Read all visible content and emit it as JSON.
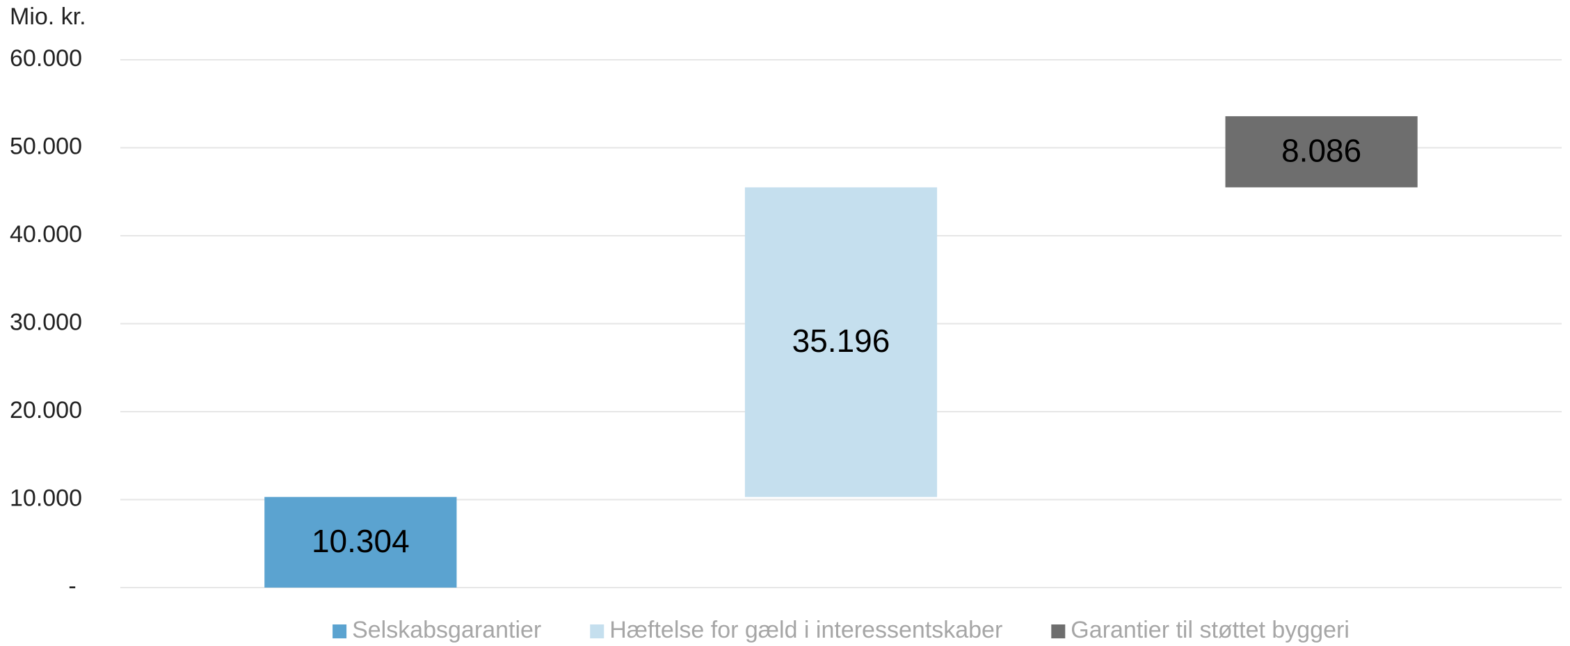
{
  "chart_data": {
    "type": "waterfall",
    "y_axis_label": "Mio. kr.",
    "series": [
      {
        "name": "Selskabsgarantier",
        "color": "#5ba3d0",
        "values": [
          10304
        ],
        "value_labels": [
          "10.304"
        ]
      },
      {
        "name": "Hæftelse for gæld i interessentskaber",
        "color": "#c5dfee",
        "values": [
          35196
        ],
        "value_labels": [
          "35.196"
        ]
      },
      {
        "name": "Garantier til støttet byggeri",
        "color": "#6e6e6e",
        "values": [
          8086
        ],
        "value_labels": [
          "8.086"
        ]
      }
    ],
    "ylim": [
      0,
      60000
    ],
    "yticks": [
      {
        "value": 0,
        "label": "-"
      },
      {
        "value": 10000,
        "label": "10.000"
      },
      {
        "value": 20000,
        "label": "20.000"
      },
      {
        "value": 30000,
        "label": "30.000"
      },
      {
        "value": 40000,
        "label": "40.000"
      },
      {
        "value": 50000,
        "label": "50.000"
      },
      {
        "value": 60000,
        "label": "60.000"
      }
    ],
    "grid": true,
    "legend": "bottom"
  }
}
